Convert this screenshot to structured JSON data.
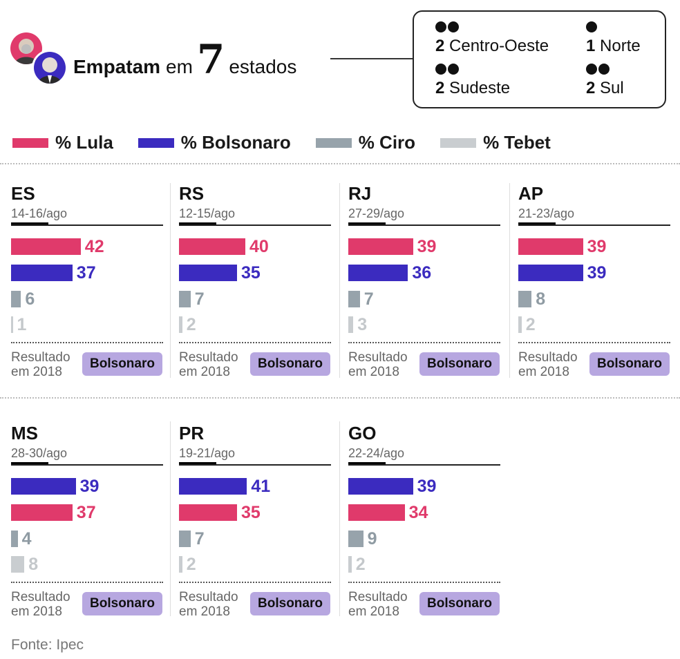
{
  "header": {
    "headline_bold": "Empatam",
    "headline_mid": "em",
    "headline_number": "7",
    "headline_end": "estados"
  },
  "regions": [
    {
      "count": "2",
      "name": "Centro-Oeste",
      "dots": 2
    },
    {
      "count": "1",
      "name": "Norte",
      "dots": 1
    },
    {
      "count": "2",
      "name": "Sudeste",
      "dots": 2
    },
    {
      "count": "2",
      "name": "Sul",
      "dots": 2
    }
  ],
  "colors": {
    "lula": "#e03a6b",
    "bolsonaro": "#3b2bbf",
    "ciro": "#97a3ab",
    "tebet": "#c9cdd0",
    "badge": "#b7a7e0"
  },
  "legend": [
    {
      "key": "lula",
      "label": "% Lula"
    },
    {
      "key": "bolsonaro",
      "label": "% Bolsonaro"
    },
    {
      "key": "ciro",
      "label": "% Ciro"
    },
    {
      "key": "tebet",
      "label": "% Tebet"
    }
  ],
  "chart_data": {
    "type": "bar",
    "orientation": "horizontal",
    "result_label": "Resultado em 2018",
    "panels": [
      {
        "state": "ES",
        "date": "14-16/ago",
        "bars": [
          {
            "key": "lula",
            "value": 42
          },
          {
            "key": "bolsonaro",
            "value": 37
          },
          {
            "key": "ciro",
            "value": 6
          },
          {
            "key": "tebet",
            "value": 1
          }
        ],
        "result_2018": "Bolsonaro"
      },
      {
        "state": "RS",
        "date": "12-15/ago",
        "bars": [
          {
            "key": "lula",
            "value": 40
          },
          {
            "key": "bolsonaro",
            "value": 35
          },
          {
            "key": "ciro",
            "value": 7
          },
          {
            "key": "tebet",
            "value": 2
          }
        ],
        "result_2018": "Bolsonaro"
      },
      {
        "state": "RJ",
        "date": "27-29/ago",
        "bars": [
          {
            "key": "lula",
            "value": 39
          },
          {
            "key": "bolsonaro",
            "value": 36
          },
          {
            "key": "ciro",
            "value": 7
          },
          {
            "key": "tebet",
            "value": 3
          }
        ],
        "result_2018": "Bolsonaro"
      },
      {
        "state": "AP",
        "date": "21-23/ago",
        "bars": [
          {
            "key": "lula",
            "value": 39
          },
          {
            "key": "bolsonaro",
            "value": 39
          },
          {
            "key": "ciro",
            "value": 8
          },
          {
            "key": "tebet",
            "value": 2
          }
        ],
        "result_2018": "Bolsonaro"
      },
      {
        "state": "MS",
        "date": "28-30/ago",
        "bars": [
          {
            "key": "bolsonaro",
            "value": 39
          },
          {
            "key": "lula",
            "value": 37
          },
          {
            "key": "ciro",
            "value": 4
          },
          {
            "key": "tebet",
            "value": 8
          }
        ],
        "result_2018": "Bolsonaro"
      },
      {
        "state": "PR",
        "date": "19-21/ago",
        "bars": [
          {
            "key": "bolsonaro",
            "value": 41
          },
          {
            "key": "lula",
            "value": 35
          },
          {
            "key": "ciro",
            "value": 7
          },
          {
            "key": "tebet",
            "value": 2
          }
        ],
        "result_2018": "Bolsonaro"
      },
      {
        "state": "GO",
        "date": "22-24/ago",
        "bars": [
          {
            "key": "bolsonaro",
            "value": 39
          },
          {
            "key": "lula",
            "value": 34
          },
          {
            "key": "ciro",
            "value": 9
          },
          {
            "key": "tebet",
            "value": 2
          }
        ],
        "result_2018": "Bolsonaro"
      }
    ]
  },
  "result_label_line1": "Resultado",
  "result_label_line2": "em 2018",
  "source": "Fonte: Ipec"
}
